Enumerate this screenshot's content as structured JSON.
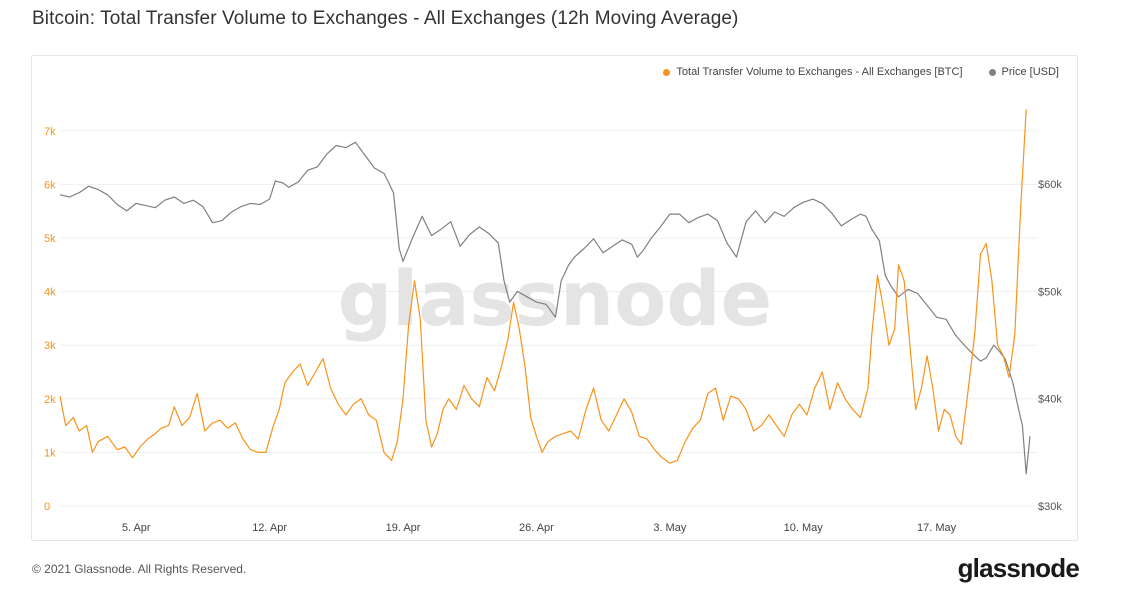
{
  "title": "Bitcoin: Total Transfer Volume to Exchanges - All Exchanges (12h Moving Average)",
  "footer": "© 2021 Glassnode. All Rights Reserved.",
  "brand": "glassnode",
  "watermark": "glassnode",
  "colors": {
    "volume": "#f7931a",
    "price": "#808080",
    "grid": "#efefef"
  },
  "legend": {
    "volume_label": "Total Transfer Volume to Exchanges - All Exchanges [BTC]",
    "price_label": "Price [USD]"
  },
  "chart_data": {
    "type": "line",
    "title": "Bitcoin: Total Transfer Volume to Exchanges - All Exchanges (12h Moving Average)",
    "x_start": "2021-04-01",
    "x_end": "2021-05-19T12:00",
    "x_ticks": [
      {
        "day": 4,
        "label": "5. Apr"
      },
      {
        "day": 11,
        "label": "12. Apr"
      },
      {
        "day": 18,
        "label": "19. Apr"
      },
      {
        "day": 25,
        "label": "26. Apr"
      },
      {
        "day": 32,
        "label": "3. May"
      },
      {
        "day": 39,
        "label": "10. May"
      },
      {
        "day": 46,
        "label": "17. May"
      }
    ],
    "y_left": {
      "label": "BTC",
      "range": [
        0,
        7500
      ],
      "ticks": [
        {
          "v": 0,
          "label": "0"
        },
        {
          "v": 1000,
          "label": "1k"
        },
        {
          "v": 2000,
          "label": "2k"
        },
        {
          "v": 3000,
          "label": "3k"
        },
        {
          "v": 4000,
          "label": "4k"
        },
        {
          "v": 5000,
          "label": "5k"
        },
        {
          "v": 6000,
          "label": "6k"
        },
        {
          "v": 7000,
          "label": "7k"
        }
      ]
    },
    "y_right": {
      "label": "USD",
      "range": [
        30000,
        67000
      ],
      "ticks": [
        {
          "v": 30000,
          "label": "$30k"
        },
        {
          "v": 40000,
          "label": "$40k"
        },
        {
          "v": 50000,
          "label": "$50k"
        },
        {
          "v": 60000,
          "label": "$60k"
        }
      ]
    },
    "series": [
      {
        "name": "Total Transfer Volume to Exchanges - All Exchanges [BTC]",
        "axis": "left",
        "points": [
          [
            0,
            2050
          ],
          [
            0.3,
            1500
          ],
          [
            0.7,
            1650
          ],
          [
            1,
            1400
          ],
          [
            1.4,
            1500
          ],
          [
            1.7,
            1000
          ],
          [
            2,
            1200
          ],
          [
            2.5,
            1300
          ],
          [
            3,
            1050
          ],
          [
            3.4,
            1100
          ],
          [
            3.8,
            900
          ],
          [
            4.2,
            1100
          ],
          [
            4.6,
            1250
          ],
          [
            5,
            1350
          ],
          [
            5.3,
            1450
          ],
          [
            5.7,
            1500
          ],
          [
            6,
            1850
          ],
          [
            6.4,
            1500
          ],
          [
            6.8,
            1650
          ],
          [
            7.2,
            2100
          ],
          [
            7.6,
            1400
          ],
          [
            8,
            1550
          ],
          [
            8.4,
            1600
          ],
          [
            8.8,
            1450
          ],
          [
            9.2,
            1550
          ],
          [
            9.6,
            1250
          ],
          [
            10,
            1050
          ],
          [
            10.4,
            1000
          ],
          [
            10.8,
            1000
          ],
          [
            11.2,
            1500
          ],
          [
            11.5,
            1800
          ],
          [
            11.8,
            2300
          ],
          [
            12.2,
            2500
          ],
          [
            12.6,
            2650
          ],
          [
            13,
            2250
          ],
          [
            13.4,
            2500
          ],
          [
            13.8,
            2750
          ],
          [
            14.2,
            2200
          ],
          [
            14.6,
            1900
          ],
          [
            15,
            1700
          ],
          [
            15.4,
            1900
          ],
          [
            15.8,
            2000
          ],
          [
            16.2,
            1700
          ],
          [
            16.6,
            1600
          ],
          [
            17,
            1000
          ],
          [
            17.4,
            850
          ],
          [
            17.7,
            1200
          ],
          [
            18,
            2000
          ],
          [
            18.3,
            3400
          ],
          [
            18.6,
            4200
          ],
          [
            18.9,
            3500
          ],
          [
            19.2,
            1600
          ],
          [
            19.5,
            1100
          ],
          [
            19.8,
            1350
          ],
          [
            20.1,
            1800
          ],
          [
            20.4,
            2000
          ],
          [
            20.8,
            1800
          ],
          [
            21.2,
            2250
          ],
          [
            21.6,
            2000
          ],
          [
            22,
            1850
          ],
          [
            22.4,
            2400
          ],
          [
            22.8,
            2150
          ],
          [
            23.2,
            2650
          ],
          [
            23.5,
            3100
          ],
          [
            23.8,
            3800
          ],
          [
            24.1,
            3300
          ],
          [
            24.4,
            2600
          ],
          [
            24.7,
            1650
          ],
          [
            25,
            1300
          ],
          [
            25.3,
            1000
          ],
          [
            25.6,
            1200
          ],
          [
            26,
            1300
          ],
          [
            26.4,
            1350
          ],
          [
            26.8,
            1400
          ],
          [
            27.2,
            1250
          ],
          [
            27.6,
            1800
          ],
          [
            28,
            2200
          ],
          [
            28.4,
            1600
          ],
          [
            28.8,
            1400
          ],
          [
            29.2,
            1700
          ],
          [
            29.6,
            2000
          ],
          [
            30,
            1750
          ],
          [
            30.4,
            1300
          ],
          [
            30.8,
            1250
          ],
          [
            31.2,
            1050
          ],
          [
            31.6,
            900
          ],
          [
            32,
            800
          ],
          [
            32.4,
            850
          ],
          [
            32.8,
            1200
          ],
          [
            33.2,
            1450
          ],
          [
            33.6,
            1600
          ],
          [
            34,
            2100
          ],
          [
            34.4,
            2200
          ],
          [
            34.8,
            1600
          ],
          [
            35.2,
            2050
          ],
          [
            35.6,
            2000
          ],
          [
            36,
            1800
          ],
          [
            36.4,
            1400
          ],
          [
            36.8,
            1500
          ],
          [
            37.2,
            1700
          ],
          [
            37.6,
            1500
          ],
          [
            38,
            1300
          ],
          [
            38.4,
            1700
          ],
          [
            38.8,
            1900
          ],
          [
            39.2,
            1700
          ],
          [
            39.6,
            2200
          ],
          [
            40,
            2500
          ],
          [
            40.4,
            1800
          ],
          [
            40.8,
            2300
          ],
          [
            41.2,
            2000
          ],
          [
            41.6,
            1800
          ],
          [
            42,
            1650
          ],
          [
            42.4,
            2200
          ],
          [
            42.6,
            3200
          ],
          [
            42.9,
            4300
          ],
          [
            43.2,
            3700
          ],
          [
            43.5,
            3000
          ],
          [
            43.8,
            3300
          ],
          [
            44,
            4500
          ],
          [
            44.3,
            4200
          ],
          [
            44.6,
            3000
          ],
          [
            44.9,
            1800
          ],
          [
            45.2,
            2200
          ],
          [
            45.5,
            2800
          ],
          [
            45.8,
            2200
          ],
          [
            46.1,
            1400
          ],
          [
            46.4,
            1800
          ],
          [
            46.7,
            1700
          ],
          [
            47,
            1300
          ],
          [
            47.3,
            1150
          ],
          [
            47.6,
            2000
          ],
          [
            48,
            3200
          ],
          [
            48.3,
            4700
          ],
          [
            48.6,
            4900
          ],
          [
            48.9,
            4200
          ],
          [
            49.2,
            3000
          ],
          [
            49.5,
            2800
          ],
          [
            49.8,
            2400
          ],
          [
            50.1,
            3200
          ],
          [
            50.4,
            5500
          ],
          [
            50.7,
            7400
          ]
        ]
      },
      {
        "name": "Price [USD]",
        "axis": "right",
        "points": [
          [
            0,
            59000
          ],
          [
            0.5,
            58800
          ],
          [
            1,
            59200
          ],
          [
            1.5,
            59800
          ],
          [
            2,
            59500
          ],
          [
            2.5,
            59000
          ],
          [
            3,
            58100
          ],
          [
            3.5,
            57500
          ],
          [
            4,
            58200
          ],
          [
            4.5,
            58000
          ],
          [
            5,
            57800
          ],
          [
            5.5,
            58500
          ],
          [
            6,
            58800
          ],
          [
            6.5,
            58200
          ],
          [
            7,
            58500
          ],
          [
            7.5,
            57900
          ],
          [
            8,
            56400
          ],
          [
            8.5,
            56600
          ],
          [
            9,
            57400
          ],
          [
            9.5,
            57900
          ],
          [
            10,
            58200
          ],
          [
            10.5,
            58100
          ],
          [
            11,
            58600
          ],
          [
            11.3,
            60300
          ],
          [
            11.7,
            60100
          ],
          [
            12,
            59700
          ],
          [
            12.5,
            60200
          ],
          [
            13,
            61300
          ],
          [
            13.5,
            61600
          ],
          [
            14,
            62800
          ],
          [
            14.5,
            63600
          ],
          [
            15,
            63400
          ],
          [
            15.5,
            63900
          ],
          [
            16,
            62700
          ],
          [
            16.5,
            61500
          ],
          [
            17,
            61000
          ],
          [
            17.2,
            60300
          ],
          [
            17.5,
            59200
          ],
          [
            17.8,
            54000
          ],
          [
            18,
            52800
          ],
          [
            18.5,
            55000
          ],
          [
            19,
            57000
          ],
          [
            19.5,
            55200
          ],
          [
            20,
            55800
          ],
          [
            20.5,
            56500
          ],
          [
            21,
            54200
          ],
          [
            21.5,
            55300
          ],
          [
            22,
            56000
          ],
          [
            22.5,
            55400
          ],
          [
            23,
            54500
          ],
          [
            23.3,
            51000
          ],
          [
            23.6,
            49000
          ],
          [
            24,
            50000
          ],
          [
            24.5,
            49500
          ],
          [
            25,
            49000
          ],
          [
            25.5,
            48800
          ],
          [
            26,
            47600
          ],
          [
            26.3,
            51000
          ],
          [
            26.7,
            52500
          ],
          [
            27,
            53200
          ],
          [
            27.5,
            54000
          ],
          [
            28,
            54900
          ],
          [
            28.5,
            53600
          ],
          [
            29,
            54200
          ],
          [
            29.5,
            54800
          ],
          [
            30,
            54400
          ],
          [
            30.3,
            53200
          ],
          [
            30.6,
            53800
          ],
          [
            31,
            54900
          ],
          [
            31.5,
            56000
          ],
          [
            32,
            57200
          ],
          [
            32.5,
            57200
          ],
          [
            33,
            56400
          ],
          [
            33.5,
            56900
          ],
          [
            34,
            57200
          ],
          [
            34.5,
            56600
          ],
          [
            35,
            54500
          ],
          [
            35.5,
            53200
          ],
          [
            36,
            56500
          ],
          [
            36.5,
            57500
          ],
          [
            37,
            56400
          ],
          [
            37.5,
            57400
          ],
          [
            38,
            57000
          ],
          [
            38.5,
            57800
          ],
          [
            39,
            58300
          ],
          [
            39.5,
            58600
          ],
          [
            40,
            58200
          ],
          [
            40.5,
            57300
          ],
          [
            41,
            56100
          ],
          [
            41.5,
            56700
          ],
          [
            42,
            57200
          ],
          [
            42.3,
            57000
          ],
          [
            42.6,
            55800
          ],
          [
            43,
            54700
          ],
          [
            43.3,
            51500
          ],
          [
            43.6,
            50500
          ],
          [
            44,
            49500
          ],
          [
            44.5,
            50200
          ],
          [
            45,
            49800
          ],
          [
            45.5,
            48700
          ],
          [
            46,
            47600
          ],
          [
            46.5,
            47400
          ],
          [
            47,
            45900
          ],
          [
            47.5,
            44900
          ],
          [
            48,
            44000
          ],
          [
            48.3,
            43500
          ],
          [
            48.6,
            43800
          ],
          [
            49,
            45000
          ],
          [
            49.3,
            44400
          ],
          [
            49.6,
            43700
          ],
          [
            50,
            41500
          ],
          [
            50.3,
            39000
          ],
          [
            50.5,
            37500
          ],
          [
            50.7,
            33000
          ],
          [
            50.9,
            36500
          ]
        ]
      }
    ]
  }
}
